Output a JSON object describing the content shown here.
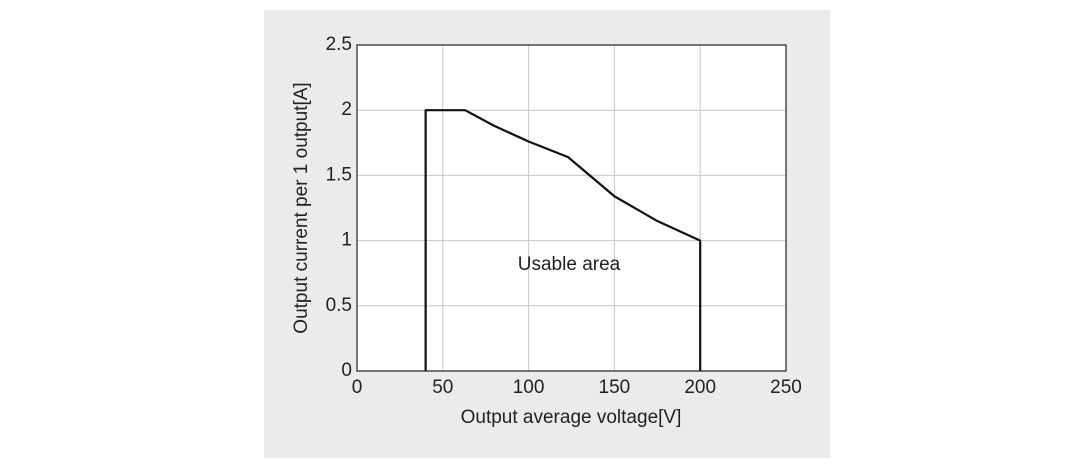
{
  "chart_data": {
    "type": "line",
    "xlabel": "Output average voltage[V]",
    "ylabel": "Output current per 1 output[A]",
    "annotation": "Usable area",
    "x": [
      40,
      40,
      63,
      80,
      100,
      123,
      150,
      175,
      200,
      200
    ],
    "values": [
      0,
      2,
      2,
      1.88,
      1.76,
      1.64,
      1.34,
      1.15,
      1,
      0
    ],
    "color": "#111111",
    "xlim": [
      0,
      250
    ],
    "xticks": [
      0,
      50,
      100,
      150,
      200,
      250
    ],
    "ylim": [
      0,
      2.5
    ],
    "yticks": [
      0,
      0.5,
      1,
      1.5,
      2,
      2.5
    ],
    "grid": true
  }
}
